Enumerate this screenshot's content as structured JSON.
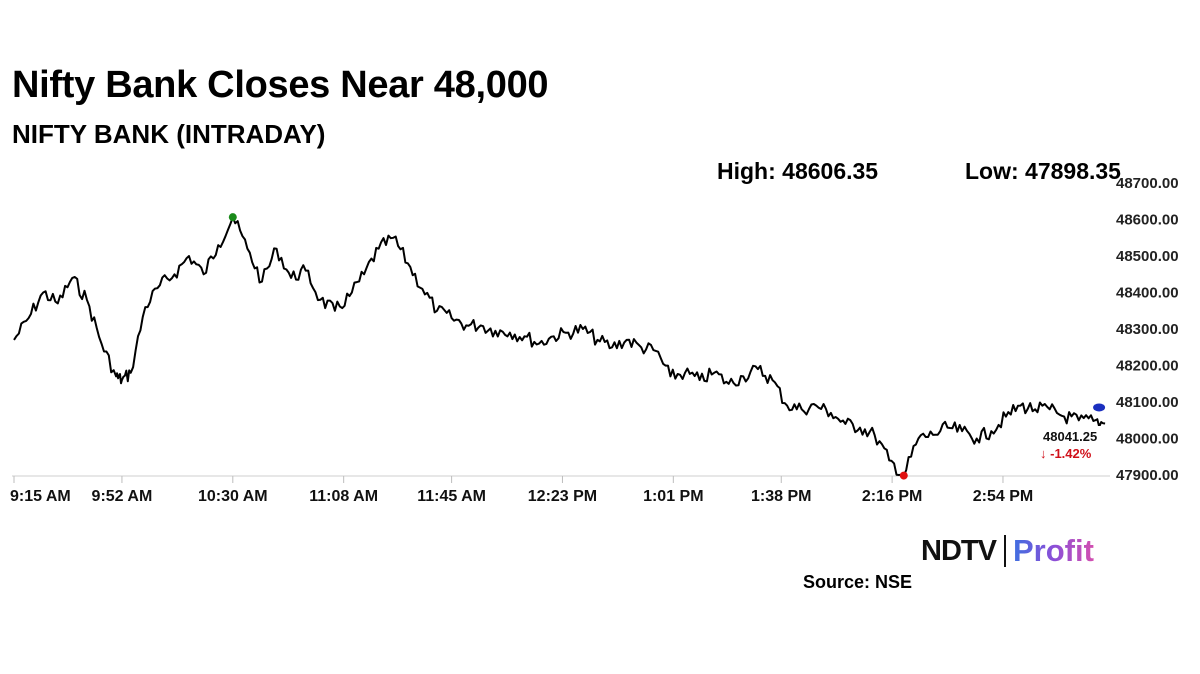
{
  "header": {
    "title": "Nifty Bank Closes Near 48,000",
    "subtitle": "NIFTY BANK (INTRADAY)"
  },
  "stats": {
    "high": "High: 48606.35",
    "low": "Low: 47898.35"
  },
  "last": {
    "value": "48041.25",
    "change": "↓ -1.42%"
  },
  "brand": {
    "ndtv": "NDTV",
    "profit": "Profit"
  },
  "source": "Source: NSE",
  "colors": {
    "line": "#000000",
    "high_marker": "#1a8a1a",
    "low_marker": "#e01010",
    "last_marker": "#1a2fbf",
    "negative": "#d0101a"
  },
  "chart_data": {
    "type": "line",
    "title": "NIFTY BANK (INTRADAY)",
    "xlabel": "",
    "ylabel": "",
    "x_ticks": [
      "9:15 AM",
      "9:52 AM",
      "10:30 AM",
      "11:08 AM",
      "11:45 AM",
      "12:23 PM",
      "1:01 PM",
      "1:38 PM",
      "2:16 PM",
      "2:54 PM"
    ],
    "y_ticks": [
      "48700.00",
      "48600.00",
      "48500.00",
      "48400.00",
      "48300.00",
      "48200.00",
      "48100.00",
      "48000.00",
      "47900.00"
    ],
    "ylim": [
      47900,
      48700
    ],
    "xlim": [
      "9:15 AM",
      "3:30 PM"
    ],
    "grid": false,
    "high": 48606.35,
    "low": 47898.35,
    "close": 48041.25,
    "change_pct": -1.42,
    "series": [
      {
        "x": [
          "9:15 AM",
          "9:20 AM",
          "9:25 AM",
          "9:30 AM",
          "9:35 AM",
          "9:40 AM",
          "9:45 AM",
          "9:50 AM",
          "9:52 AM",
          "9:55 AM",
          "10:00 AM",
          "10:05 AM",
          "10:10 AM",
          "10:15 AM",
          "10:20 AM",
          "10:25 AM",
          "10:30 AM",
          "10:35 AM",
          "10:40 AM",
          "10:45 AM",
          "10:50 AM",
          "10:55 AM",
          "11:00 AM",
          "11:05 AM",
          "11:10 AM",
          "11:15 AM",
          "11:20 AM",
          "11:25 AM",
          "11:30 AM",
          "11:35 AM",
          "11:40 AM",
          "11:45 AM",
          "11:50 AM",
          "11:55 AM",
          "12:00 PM",
          "12:05 PM",
          "12:10 PM",
          "12:15 PM",
          "12:20 PM",
          "12:25 PM",
          "12:30 PM",
          "12:35 PM",
          "12:40 PM",
          "12:45 PM",
          "12:50 PM",
          "12:55 PM",
          "1:00 PM",
          "1:05 PM",
          "1:10 PM",
          "1:15 PM",
          "1:20 PM",
          "1:25 PM",
          "1:30 PM",
          "1:35 PM",
          "1:40 PM",
          "1:45 PM",
          "1:50 PM",
          "1:55 PM",
          "2:00 PM",
          "2:05 PM",
          "2:10 PM",
          "2:15 PM",
          "2:20 PM",
          "2:25 PM",
          "2:30 PM",
          "2:35 PM",
          "2:40 PM",
          "2:45 PM",
          "2:50 PM",
          "2:55 PM",
          "3:00 PM",
          "3:05 PM",
          "3:10 PM",
          "3:15 PM",
          "3:20 PM",
          "3:25 PM",
          "3:29 PM"
        ],
        "values": [
          48270,
          48330,
          48400,
          48370,
          48440,
          48380,
          48260,
          48170,
          48160,
          48180,
          48360,
          48420,
          48450,
          48500,
          48450,
          48530,
          48606,
          48520,
          48430,
          48520,
          48440,
          48460,
          48380,
          48350,
          48390,
          48450,
          48520,
          48550,
          48480,
          48410,
          48350,
          48330,
          48310,
          48310,
          48295,
          48290,
          48280,
          48260,
          48280,
          48290,
          48300,
          48270,
          48250,
          48270,
          48250,
          48240,
          48170,
          48180,
          48160,
          48180,
          48150,
          48170,
          48190,
          48160,
          48090,
          48080,
          48090,
          48070,
          48040,
          48030,
          48010,
          47940,
          47898,
          48000,
          48010,
          48030,
          48020,
          48000,
          48020,
          48060,
          48090,
          48080,
          48080,
          48060,
          48050,
          48048,
          48041
        ]
      }
    ]
  }
}
